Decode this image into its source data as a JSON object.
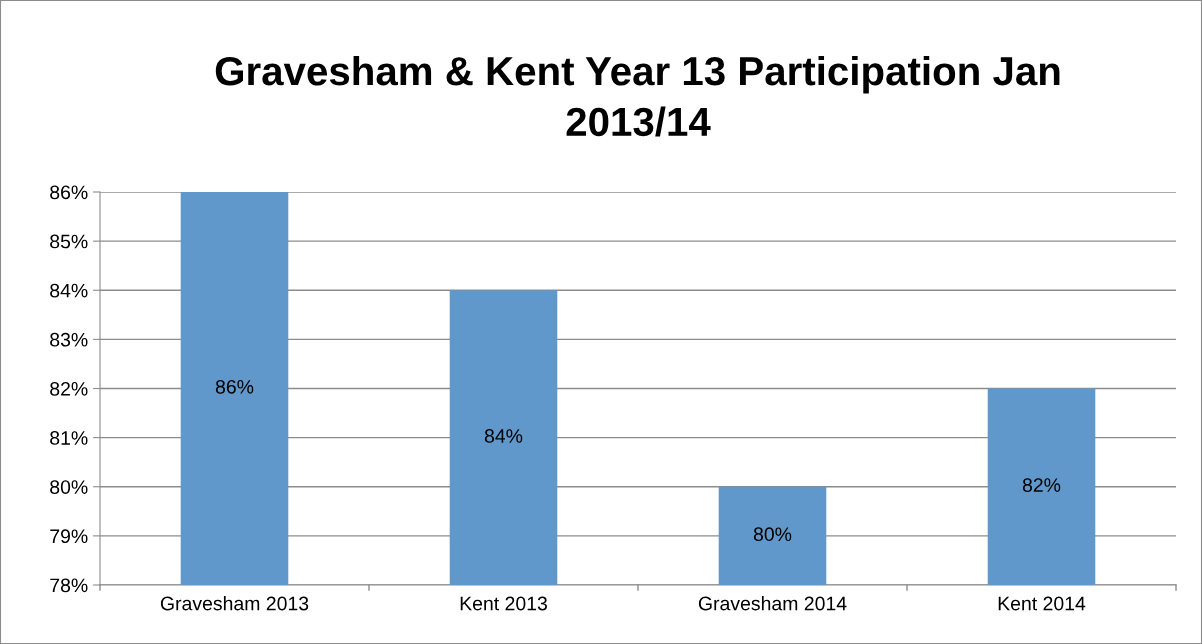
{
  "chart_data": {
    "type": "bar",
    "title": "Gravesham & Kent Year 13 Participation Jan\n2013/14",
    "categories": [
      "Gravesham 2013",
      "Kent 2013",
      "Gravesham 2014",
      "Kent 2014"
    ],
    "values": [
      86,
      84,
      80,
      82
    ],
    "value_labels": [
      "86%",
      "84%",
      "80%",
      "82%"
    ],
    "color": "#6198cb",
    "ylim": [
      78,
      86
    ],
    "yticks": [
      {
        "value": 78,
        "label": "78%"
      },
      {
        "value": 79,
        "label": "79%"
      },
      {
        "value": 80,
        "label": "80%"
      },
      {
        "value": 81,
        "label": "81%"
      },
      {
        "value": 82,
        "label": "82%"
      },
      {
        "value": 83,
        "label": "83%"
      },
      {
        "value": 84,
        "label": "84%"
      },
      {
        "value": 85,
        "label": "85%"
      },
      {
        "value": 86,
        "label": "86%"
      }
    ],
    "grid": "y"
  }
}
